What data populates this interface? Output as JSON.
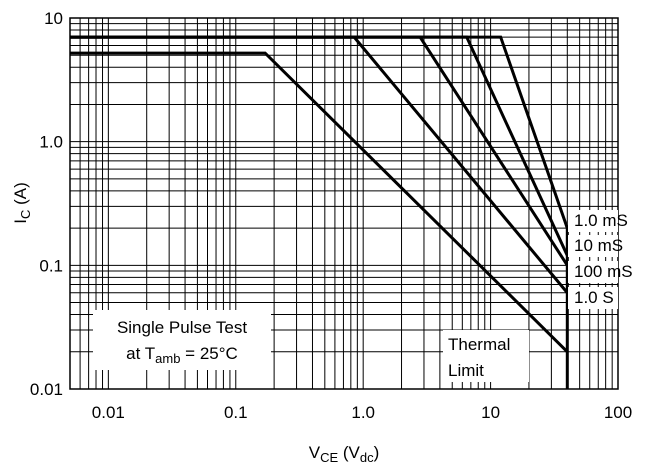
{
  "chart_data": {
    "type": "line",
    "title": "",
    "xscale": "log",
    "yscale": "log",
    "xlim": [
      0.005,
      100
    ],
    "ylim": [
      0.01,
      10
    ],
    "grid": true,
    "xlabel": {
      "main": "V",
      "sub": "CE",
      "rest_open": " (V",
      "sub2": "dc",
      "rest_close": ")"
    },
    "ylabel": {
      "main": "I",
      "sub": "C",
      "rest": " (A)"
    },
    "x_ticks": [
      {
        "value": 0.01,
        "label": "0.01"
      },
      {
        "value": 0.1,
        "label": "0.1"
      },
      {
        "value": 1,
        "label": "1.0"
      },
      {
        "value": 10,
        "label": "10"
      },
      {
        "value": 100,
        "label": "100"
      }
    ],
    "y_ticks": [
      {
        "value": 0.01,
        "label": "0.01"
      },
      {
        "value": 0.1,
        "label": "0.1"
      },
      {
        "value": 1,
        "label": "1.0"
      },
      {
        "value": 10,
        "label": "10"
      }
    ],
    "series": [
      {
        "name": "1.0 mS",
        "x": [
          0.005,
          12,
          40,
          40
        ],
        "y": [
          7,
          7,
          0.2,
          0.01
        ]
      },
      {
        "name": "10 mS",
        "x": [
          0.005,
          6.5,
          40
        ],
        "y": [
          7,
          7,
          0.12
        ]
      },
      {
        "name": "100 mS",
        "x": [
          0.005,
          2.8,
          40
        ],
        "y": [
          7,
          7,
          0.1
        ]
      },
      {
        "name": "1.0 S",
        "x": [
          0.005,
          0.85,
          40
        ],
        "y": [
          7,
          7,
          0.06
        ]
      },
      {
        "name": "Thermal Limit",
        "x": [
          0.005,
          0.17,
          40
        ],
        "y": [
          5.2,
          5.2,
          0.02
        ]
      }
    ],
    "series_labels": [
      "1.0 mS",
      "10 mS",
      "100 mS",
      "1.0 S"
    ],
    "annotations": {
      "test_line1": "Single Pulse Test",
      "test_line2_pre": "at T",
      "test_line2_sub": "amb",
      "test_line2_post": " = 25°C",
      "thermal_line1": "Thermal",
      "thermal_line2": "Limit"
    }
  }
}
